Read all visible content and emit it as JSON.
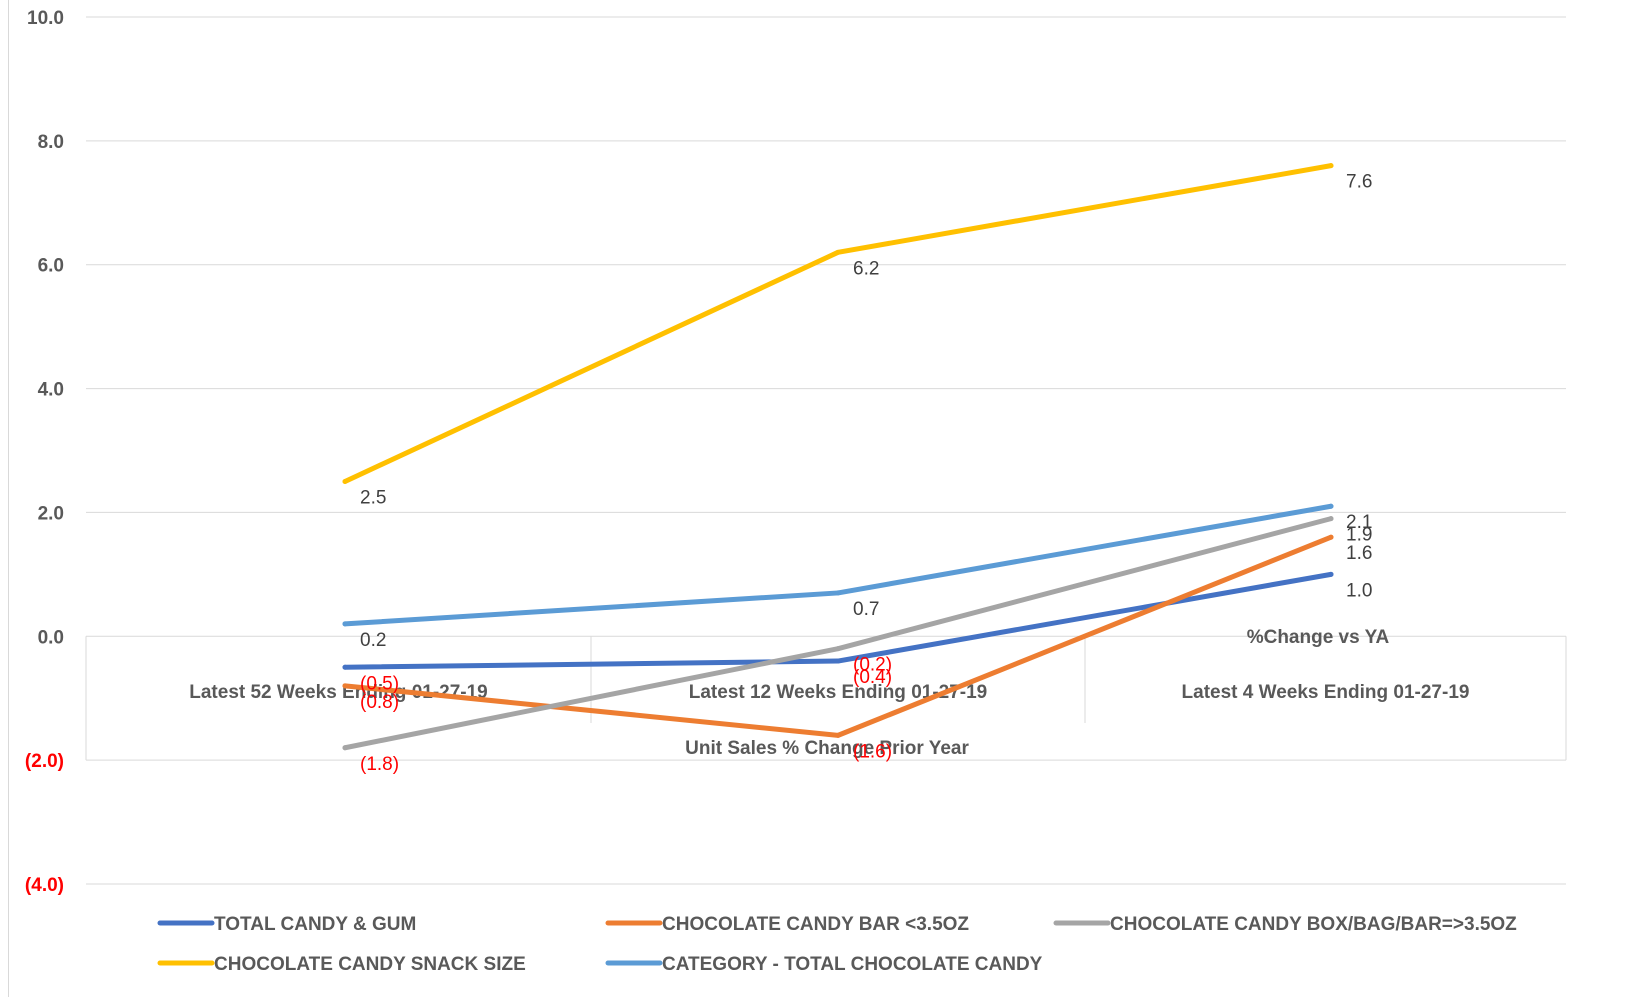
{
  "chart_data": {
    "type": "line",
    "title": "",
    "xlabel": "Unit Sales % Change Prior Year",
    "ylabel": "",
    "xlabel_header": "%Change vs YA",
    "categories": [
      "Latest 52 Weeks Ending 01-27-19",
      "Latest 12 Weeks Ending 01-27-19",
      "Latest 4 Weeks Ending 01-27-19"
    ],
    "ylim": [
      -4.0,
      10.0
    ],
    "yticks": [
      10.0,
      8.0,
      6.0,
      4.0,
      2.0,
      0.0,
      -2.0,
      -4.0
    ],
    "ytick_labels": [
      "10.0",
      "8.0",
      "6.0",
      "4.0",
      "2.0",
      "0.0",
      "(2.0)",
      "(4.0)"
    ],
    "grid": true,
    "legend_position": "bottom",
    "series": [
      {
        "name": "TOTAL CANDY & GUM",
        "color": "#4472C4",
        "values": [
          -0.5,
          -0.4,
          1.0
        ],
        "labels": [
          "(0.5)",
          "(0.4)",
          "1.0"
        ]
      },
      {
        "name": "CHOCOLATE CANDY BAR <3.5OZ",
        "color": "#ED7D31",
        "values": [
          -0.8,
          -1.6,
          1.6
        ],
        "labels": [
          "(0.8)",
          "(1.6)",
          "1.6"
        ]
      },
      {
        "name": "CHOCOLATE CANDY BOX/BAG/BAR=>3.5OZ",
        "color": "#A5A5A5",
        "values": [
          -1.8,
          -0.2,
          1.9
        ],
        "labels": [
          "(1.8)",
          "(0.2)",
          "1.9"
        ]
      },
      {
        "name": "CHOCOLATE CANDY SNACK SIZE",
        "color": "#FFC000",
        "values": [
          2.5,
          6.2,
          7.6
        ],
        "labels": [
          "2.5",
          "6.2",
          "7.6"
        ]
      },
      {
        "name": "CATEGORY - TOTAL CHOCOLATE CANDY",
        "color": "#5B9BD5",
        "values": [
          0.2,
          0.7,
          2.1
        ],
        "labels": [
          "0.2",
          "0.7",
          "2.1"
        ]
      }
    ]
  }
}
